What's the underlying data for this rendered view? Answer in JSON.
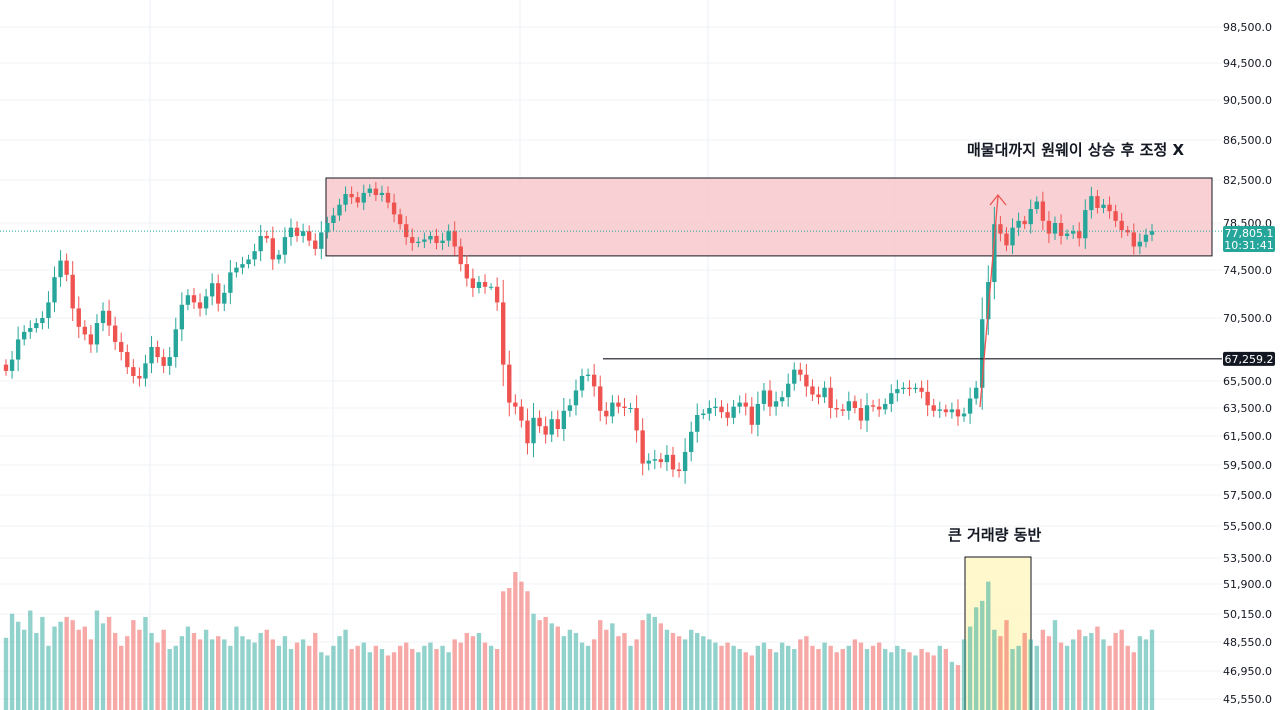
{
  "chart_data": {
    "type": "candlestick",
    "y_axis_ticks": [
      98500,
      94500,
      90500,
      86500,
      82500,
      78500,
      74500,
      70500,
      65500,
      63500,
      61500,
      59500,
      57500,
      55500,
      53500,
      51900,
      50150,
      48550,
      46950,
      45550
    ],
    "y_axis_labels": [
      "98,500.0",
      "94,500.0",
      "90,500.0",
      "86,500.0",
      "82,500.0",
      "78,500.0",
      "74,500.0",
      "70,500.0",
      "65,500.0",
      "63,500.0",
      "61,500.0",
      "59,500.0",
      "57,500.0",
      "55,500.0",
      "53,500.0",
      "51,900.0",
      "50,150.0",
      "48,550.0",
      "46,950.0",
      "45,550.0"
    ],
    "current_price": 77805.1,
    "current_price_label": "77,805.1",
    "countdown_label": "10:31:41",
    "level_price": 67259.2,
    "level_price_label": "67,259.2",
    "resistance_zone": {
      "low": 75700,
      "high": 82700
    },
    "colors": {
      "up": "#26a69a",
      "down": "#ef5350",
      "zone_fill": "#f8c9cc",
      "volume_highlight": "#fff6c0",
      "level_line": "#131722"
    },
    "annotations": {
      "top": "매물대까지 원웨이 상승 후 조정 X",
      "volume": "큰 거래량 동반"
    },
    "closes": [
      66300,
      67200,
      68800,
      69400,
      69700,
      70100,
      70500,
      71800,
      73900,
      75300,
      74100,
      71300,
      69800,
      69200,
      68400,
      70100,
      71100,
      69900,
      68600,
      67800,
      66600,
      65900,
      65700,
      66900,
      68200,
      67400,
      66700,
      67400,
      69600,
      71600,
      72400,
      71800,
      71300,
      72300,
      73400,
      71700,
      72600,
      74300,
      74700,
      75000,
      75400,
      76100,
      77400,
      77200,
      75400,
      75800,
      77300,
      78100,
      77400,
      77800,
      77000,
      76300,
      77700,
      78500,
      79200,
      80200,
      81200,
      80900,
      80400,
      81300,
      81700,
      81100,
      81300,
      80400,
      79300,
      78400,
      77300,
      76800,
      76900,
      77100,
      77400,
      76800,
      77000,
      77800,
      76500,
      75000,
      73800,
      73000,
      73500,
      73100,
      73100,
      71800,
      66800,
      63900,
      63600,
      62600,
      61000,
      62800,
      62200,
      61600,
      62700,
      62000,
      63300,
      63700,
      64800,
      65900,
      66000,
      65100,
      63300,
      62900,
      63900,
      63600,
      63500,
      63500,
      61900,
      59600,
      59800,
      59900,
      59700,
      60200,
      59200,
      59100,
      60400,
      61800,
      63000,
      63100,
      63500,
      63600,
      63200,
      62800,
      63600,
      63900,
      63600,
      62300,
      63800,
      64800,
      63600,
      64000,
      64300,
      65300,
      66400,
      66000,
      65100,
      64500,
      64300,
      65000,
      63500,
      63400,
      63300,
      64000,
      63500,
      62600,
      63700,
      63600,
      63400,
      63800,
      64600,
      64900,
      65000,
      64900,
      65000,
      64700,
      63700,
      63300,
      63400,
      63200,
      63400,
      62900,
      63100,
      64200,
      65000,
      70400,
      73500,
      78400,
      77600,
      76600,
      78100,
      78700,
      78400,
      79800,
      80500,
      78700,
      77600,
      78500,
      77400,
      77600,
      77800,
      77200,
      79700,
      81000,
      79900,
      80200,
      79600,
      78700,
      77900,
      77700,
      76500,
      76900,
      77500,
      77800
    ],
    "volume_note": "volume bars shown as relative heights",
    "volumes": [
      45,
      60,
      55,
      50,
      62,
      48,
      58,
      40,
      52,
      55,
      58,
      56,
      50,
      52,
      44,
      62,
      54,
      58,
      48,
      40,
      46,
      56,
      50,
      58,
      48,
      42,
      50,
      38,
      40,
      46,
      52,
      48,
      44,
      50,
      44,
      46,
      44,
      40,
      52,
      46,
      44,
      42,
      48,
      50,
      44,
      40,
      46,
      38,
      42,
      44,
      40,
      48,
      36,
      34,
      40,
      46,
      50,
      38,
      40,
      42,
      36,
      40,
      38,
      34,
      36,
      40,
      42,
      38,
      36,
      40,
      42,
      38,
      40,
      36,
      44,
      42,
      48,
      46,
      48,
      42,
      40,
      38,
      74,
      76,
      86,
      80,
      74,
      60,
      56,
      58,
      54,
      52,
      46,
      50,
      48,
      42,
      40,
      44,
      56,
      50,
      54,
      46,
      48,
      40,
      44,
      56,
      60,
      58,
      54,
      50,
      48,
      46,
      44,
      50,
      48,
      46,
      44,
      42,
      40,
      42,
      40,
      38,
      36,
      34,
      40,
      42,
      38,
      36,
      42,
      40,
      38,
      44,
      46,
      40,
      38,
      42,
      40,
      36,
      38,
      40,
      44,
      42,
      38,
      40,
      42,
      38,
      36,
      40,
      38,
      36,
      34,
      38,
      36,
      34,
      40,
      38,
      30,
      28,
      44,
      52,
      64,
      68,
      80,
      50,
      46,
      56,
      38,
      40,
      48,
      44,
      40,
      50,
      46,
      56,
      42,
      40,
      44,
      50,
      46,
      48,
      52,
      44,
      40,
      48,
      50,
      40,
      36,
      46,
      44,
      50
    ]
  }
}
